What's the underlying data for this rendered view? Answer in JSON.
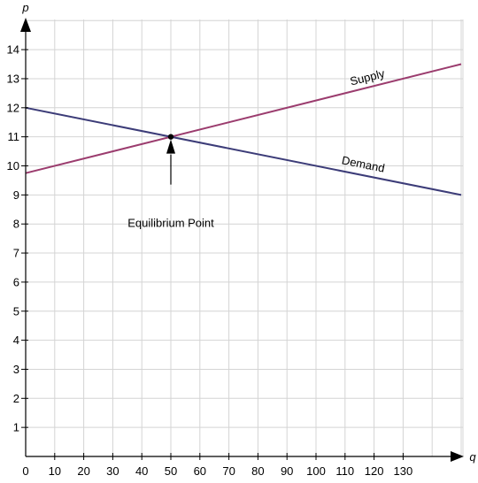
{
  "chart_data": {
    "type": "line",
    "xlabel": "q",
    "ylabel": "p",
    "xlim": [
      0,
      150
    ],
    "ylim": [
      0,
      15
    ],
    "x_ticks": [
      0,
      10,
      20,
      30,
      40,
      50,
      60,
      70,
      80,
      90,
      100,
      110,
      120,
      130
    ],
    "y_ticks": [
      1,
      2,
      3,
      4,
      5,
      6,
      7,
      8,
      9,
      10,
      11,
      12,
      13,
      14
    ],
    "grid": true,
    "series": [
      {
        "name": "Supply",
        "x": [
          0,
          150
        ],
        "y": [
          9.75,
          13.5
        ],
        "color": "#9b3c6e"
      },
      {
        "name": "Demand",
        "x": [
          0,
          150
        ],
        "y": [
          12,
          9
        ],
        "color": "#3c3c78"
      }
    ],
    "annotations": [
      {
        "text": "Equilibrium Point",
        "point": [
          50,
          11
        ]
      }
    ]
  }
}
